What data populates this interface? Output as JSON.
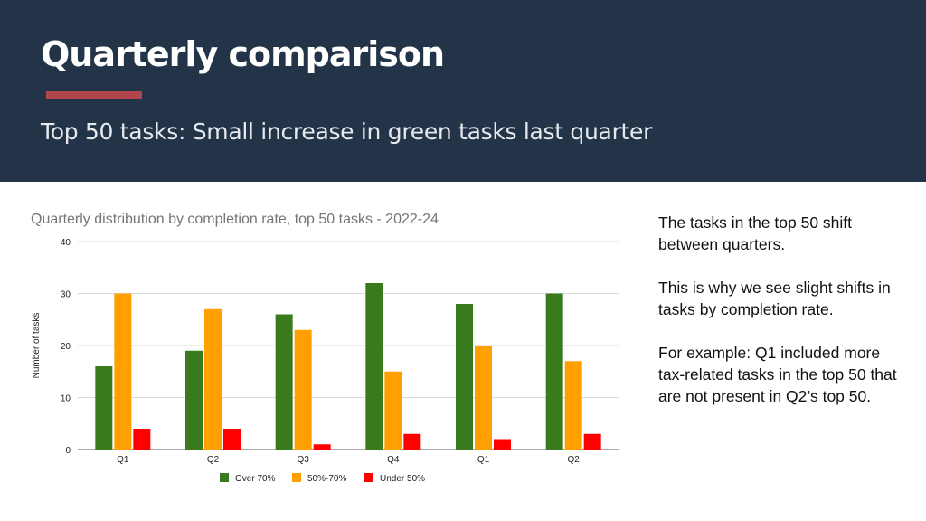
{
  "slide": {
    "title": "Quarterly comparison",
    "subtitle": "Top 50 tasks: Small increase in green tasks last quarter"
  },
  "notes": [
    "The tasks in the top 50 shift between quarters.",
    "This is why we see slight shifts in tasks by completion rate.",
    "For example: Q1 included more tax-related tasks in the top 50 that are not present in Q2’s top 50."
  ],
  "colors": {
    "header_bg": "#243448",
    "accent": "#b0464a",
    "over70": "#3a7a1f",
    "mid": "#ffa000",
    "under50": "#ff0000"
  },
  "chart_data": {
    "type": "bar",
    "title": "Quarterly distribution by completion rate, top 50 tasks - 2022-24",
    "xlabel": "",
    "ylabel": "Number of tasks",
    "ylim": [
      0,
      40
    ],
    "yticks": [
      0,
      10,
      20,
      30,
      40
    ],
    "grid": true,
    "legend_position": "bottom",
    "categories": [
      "Q1",
      "Q2",
      "Q3",
      "Q4",
      "Q1",
      "Q2"
    ],
    "series": [
      {
        "name": "Over 70%",
        "color": "#3a7a1f",
        "values": [
          16,
          19,
          26,
          32,
          28,
          30
        ]
      },
      {
        "name": "50%-70%",
        "color": "#ffa000",
        "values": [
          30,
          27,
          23,
          15,
          20,
          17
        ]
      },
      {
        "name": "Under 50%",
        "color": "#ff0000",
        "values": [
          4,
          4,
          1,
          3,
          2,
          3
        ]
      }
    ]
  }
}
